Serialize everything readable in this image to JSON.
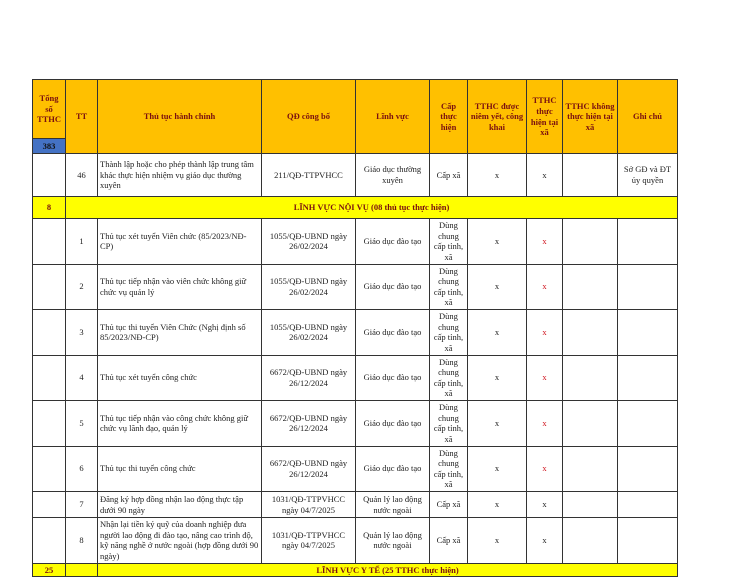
{
  "header": {
    "total": "Tổng số TTHC",
    "total_count": "383",
    "tt": "TT",
    "procedure": "Thủ tục hành chính",
    "decision": "QĐ công bố",
    "field": "Lĩnh vực",
    "level": "Cấp thực hiện",
    "posted": "TTHC được niêm yết, công khai",
    "at_commune": "TTHC thực hiện tại xã",
    "not_at_commune": "TTHC không thực hiện tại xã",
    "note": "Ghi chú"
  },
  "row46": {
    "tt": "46",
    "name": "Thành lập hoặc cho phép thành lập trung tâm khác thực hiện nhiệm vụ giáo dục thường xuyên",
    "decision": "211/QĐ-TTPVHCC",
    "field": "Giáo dục thường xuyên",
    "level": "Cấp xã",
    "posted": "x",
    "at_commune": "x",
    "not_at_commune": "",
    "note": "Sở GĐ và ĐT ủy quyền"
  },
  "section_noivu": {
    "count": "8",
    "title": "LĨNH VỰC NỘI VỤ (08 thủ tục thực hiện)"
  },
  "rows": [
    {
      "tt": "1",
      "name": "Thủ tục xét tuyển Viên chức (85/2023/NĐ-CP)",
      "decision": "1055/QĐ-UBND ngày 26/02/2024",
      "field": "Giáo dục đào tạo",
      "level": "Dùng chung cấp tỉnh, xã",
      "posted": "x",
      "at_commune": "x",
      "red": true
    },
    {
      "tt": "2",
      "name": "Thủ tục tiếp nhận vào viên chức không giữ chức vụ quản lý",
      "decision": "1055/QĐ-UBND ngày 26/02/2024",
      "field": "Giáo dục đào tạo",
      "level": "Dùng chung cấp tỉnh, xã",
      "posted": "x",
      "at_commune": "x",
      "red": true
    },
    {
      "tt": "3",
      "name": "Thủ tục thi tuyển Viên Chức (Nghị định số 85/2023/NĐ-CP)",
      "decision": "1055/QĐ-UBND ngày 26/02/2024",
      "field": "Giáo dục đào tạo",
      "level": "Dùng chung cấp tỉnh, xã",
      "posted": "x",
      "at_commune": "x",
      "red": true
    },
    {
      "tt": "4",
      "name": "Thủ tục xét tuyển công chức",
      "decision": "6672/QĐ-UBND ngày 26/12/2024",
      "field": "Giáo dục đào tạo",
      "level": "Dùng chung cấp tỉnh, xã",
      "posted": "x",
      "at_commune": "x",
      "red": true
    },
    {
      "tt": "5",
      "name": "Thủ tục tiếp nhận vào công chức không giữ chức vụ lãnh đạo, quản lý",
      "decision": "6672/QĐ-UBND ngày 26/12/2024",
      "field": "Giáo dục đào tạo",
      "level": "Dùng chung cấp tỉnh, xã",
      "posted": "x",
      "at_commune": "x",
      "red": true
    },
    {
      "tt": "6",
      "name": "Thủ tục thi tuyển công chức",
      "decision": "6672/QĐ-UBND ngày 26/12/2024",
      "field": "Giáo dục đào tạo",
      "level": "Dùng chung cấp tỉnh, xã",
      "posted": "x",
      "at_commune": "x",
      "red": true
    },
    {
      "tt": "7",
      "name": "Đăng ký hợp đồng nhận lao động thực tập dưới 90 ngày",
      "decision": "1031/QĐ-TTPVHCC ngày 04/7/2025",
      "field": "Quản lý lao động nước ngoài",
      "level": "Cấp xã",
      "posted": "x",
      "at_commune": "x",
      "red": false
    },
    {
      "tt": "8",
      "name": "Nhận lại tiền ký quỹ của doanh nghiệp đưa người lao động đi đào tạo, nâng cao trình độ, kỹ năng nghề ở nước ngoài (hợp đồng dưới 90 ngày)",
      "decision": "1031/QĐ-TTPVHCC ngày 04/7/2025",
      "field": "Quản lý lao động nước ngoài",
      "level": "Cấp xã",
      "posted": "x",
      "at_commune": "x",
      "red": false
    }
  ],
  "section_yte": {
    "count": "25",
    "title": "LĨNH VỰC Y TẾ (25 TTHC thực hiện)"
  },
  "colors": {
    "header": "#FFC000",
    "section": "#FFFF00",
    "count_cell": "#4472C4",
    "red_mark": "#d0101a"
  }
}
